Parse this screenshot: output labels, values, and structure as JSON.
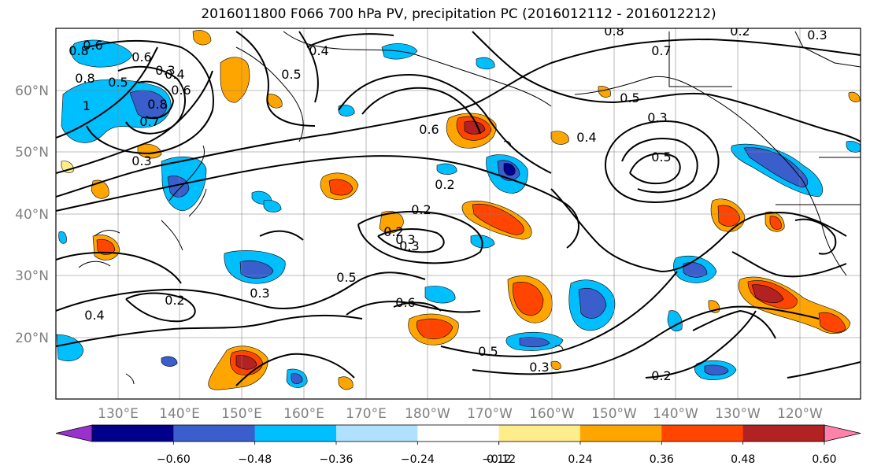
{
  "title": "2016011800 F066 700 hPa PV, precipitation PC (2016012112 - 2016012212)",
  "map": {
    "lat_labels": [
      "60°N",
      "50°N",
      "40°N",
      "30°N",
      "20°N"
    ],
    "lon_labels": [
      "130°E",
      "140°E",
      "150°E",
      "160°E",
      "170°E",
      "180°W",
      "170°W",
      "160°W",
      "150°W",
      "140°W",
      "130°W",
      "120°W"
    ],
    "contour_labels": [
      "0.8",
      "0.6",
      "0.5",
      "0.3",
      "0.6",
      "0.8",
      "0.4",
      "0.8",
      "1",
      "0.7",
      "0.6",
      "0.3",
      "0.4",
      "0.5",
      "0.6",
      "0.8",
      "0.7",
      "0.5",
      "0.3",
      "0.5",
      "0.4",
      "0.2",
      "0.3",
      "0.2",
      "0.2",
      "0.3",
      "0.2",
      "0.3",
      "0.5",
      "0.3",
      "0.2",
      "0.4",
      "0.6",
      "0.5",
      "0.3",
      "0.2"
    ]
  },
  "colorbar": {
    "ticks": [
      "−0.60",
      "−0.48",
      "−0.36",
      "−0.24",
      "−0.12",
      "0.12",
      "0.24",
      "0.36",
      "0.48",
      "0.60"
    ],
    "colors": [
      "#9932cc",
      "#00008b",
      "#3a5fcd",
      "#00bfff",
      "#b0e2ff",
      "#ffffff",
      "#ffec8b",
      "#ffa500",
      "#ff4500",
      "#b22222",
      "#ff82ab"
    ]
  }
}
